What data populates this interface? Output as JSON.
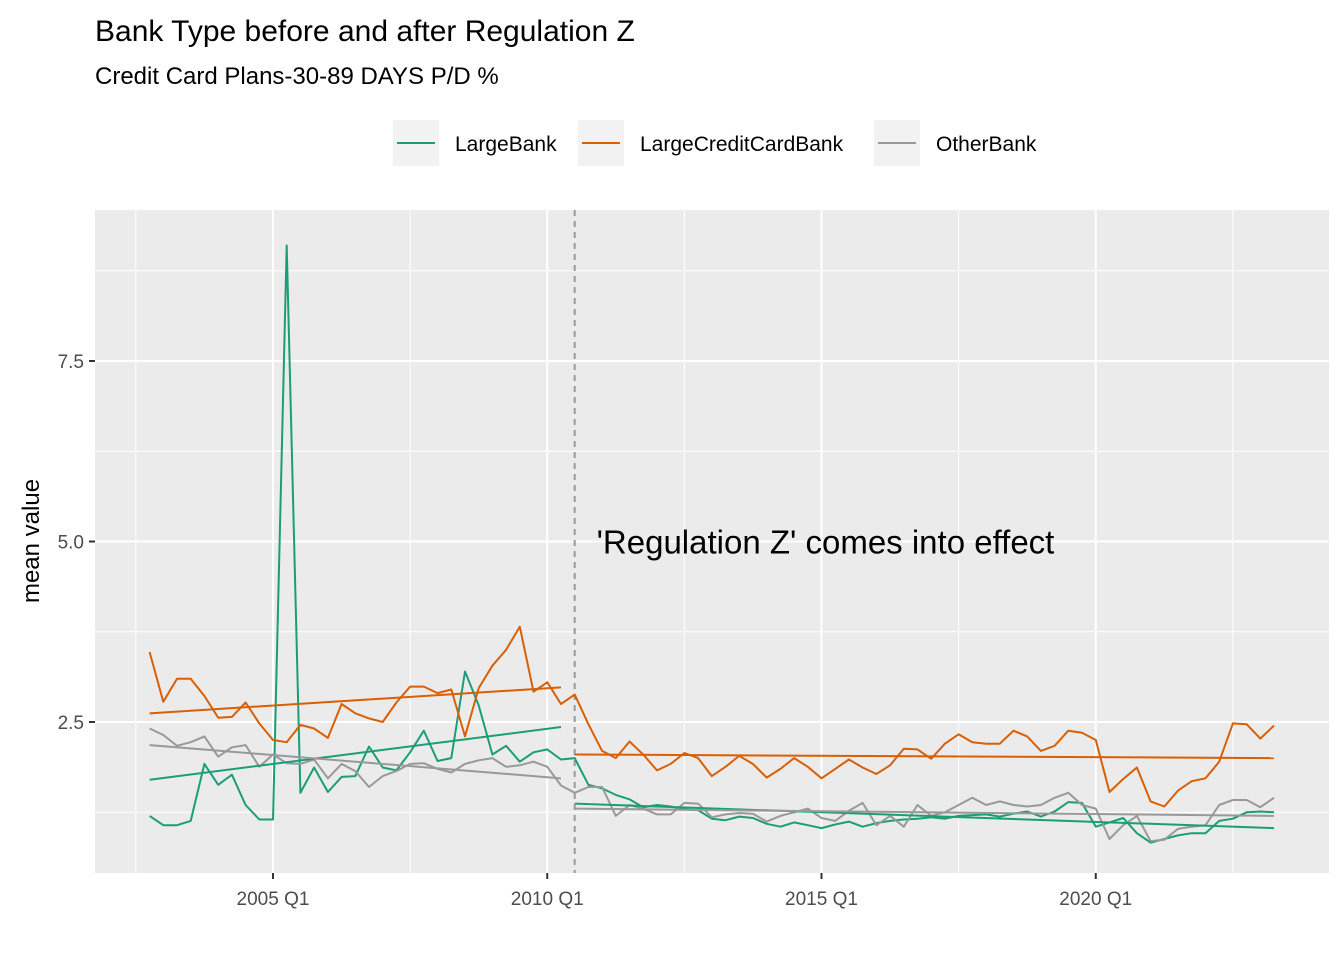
{
  "chart_data": {
    "type": "line",
    "title": "Bank Type before and after Regulation Z",
    "subtitle": "Credit Card Plans-30-89 DAYS P/D %",
    "xlabel": "",
    "ylabel": "mean value",
    "x_ticks": [
      "2005 Q1",
      "2010 Q1",
      "2015 Q1",
      "2020 Q1"
    ],
    "y_ticks": [
      2.5,
      5.0,
      7.5
    ],
    "y_tick_labels": [
      "2.5",
      "5.0",
      "7.5"
    ],
    "xlim": [
      2002.0,
      2024.5
    ],
    "ylim": [
      0.0,
      9.3
    ],
    "grid": true,
    "legend_position": "top",
    "vline": {
      "x": 2010.5,
      "style": "dashed",
      "color": "#999999"
    },
    "annotation": {
      "text": "'Regulation Z' comes into effect",
      "x": 2010.9,
      "y": 5.0
    },
    "series": [
      {
        "name": "LargeBank",
        "color": "#1b9e77",
        "x": [
          2002.75,
          2003.0,
          2003.25,
          2003.5,
          2003.75,
          2004.0,
          2004.25,
          2004.5,
          2004.75,
          2005.0,
          2005.25,
          2005.5,
          2005.75,
          2006.0,
          2006.25,
          2006.5,
          2006.75,
          2007.0,
          2007.25,
          2007.5,
          2007.75,
          2008.0,
          2008.25,
          2008.5,
          2008.75,
          2009.0,
          2009.25,
          2009.5,
          2009.75,
          2010.0,
          2010.25,
          2010.5,
          2010.75,
          2011.0,
          2011.25,
          2011.5,
          2011.75,
          2012.0,
          2012.25,
          2012.5,
          2012.75,
          2013.0,
          2013.25,
          2013.5,
          2013.75,
          2014.0,
          2014.25,
          2014.5,
          2014.75,
          2015.0,
          2015.25,
          2015.5,
          2015.75,
          2016.0,
          2016.25,
          2016.5,
          2016.75,
          2017.0,
          2017.25,
          2017.5,
          2017.75,
          2018.0,
          2018.25,
          2018.5,
          2018.75,
          2019.0,
          2019.25,
          2019.5,
          2019.75,
          2020.0,
          2020.25,
          2020.5,
          2020.75,
          2021.0,
          2021.25,
          2021.5,
          2021.75,
          2022.0,
          2022.25,
          2022.5,
          2022.75,
          2023.0,
          2023.25
        ],
        "values": [
          1.2,
          1.07,
          1.07,
          1.13,
          1.92,
          1.63,
          1.77,
          1.35,
          1.15,
          1.15,
          9.1,
          1.52,
          1.87,
          1.53,
          1.74,
          1.75,
          2.16,
          1.87,
          1.83,
          2.08,
          2.38,
          1.96,
          2.0,
          3.2,
          2.73,
          2.05,
          2.17,
          1.95,
          2.08,
          2.12,
          1.98,
          2.0,
          1.63,
          1.58,
          1.49,
          1.43,
          1.32,
          1.35,
          1.33,
          1.29,
          1.28,
          1.16,
          1.14,
          1.19,
          1.17,
          1.09,
          1.05,
          1.11,
          1.07,
          1.03,
          1.08,
          1.12,
          1.05,
          1.1,
          1.13,
          1.15,
          1.16,
          1.18,
          1.16,
          1.2,
          1.21,
          1.22,
          1.19,
          1.23,
          1.26,
          1.19,
          1.26,
          1.39,
          1.38,
          1.05,
          1.11,
          1.17,
          0.96,
          0.83,
          0.88,
          0.93,
          0.96,
          0.96,
          1.13,
          1.16,
          1.25,
          1.26,
          1.25
        ]
      },
      {
        "name": "LargeCreditCardBank",
        "color": "#d95f02",
        "x": [
          2002.75,
          2003.0,
          2003.25,
          2003.5,
          2003.75,
          2004.0,
          2004.25,
          2004.5,
          2004.75,
          2005.0,
          2005.25,
          2005.5,
          2005.75,
          2006.0,
          2006.25,
          2006.5,
          2006.75,
          2007.0,
          2007.25,
          2007.5,
          2007.75,
          2008.0,
          2008.25,
          2008.5,
          2008.75,
          2009.0,
          2009.25,
          2009.5,
          2009.75,
          2010.0,
          2010.25,
          2010.5,
          2010.75,
          2011.0,
          2011.25,
          2011.5,
          2011.75,
          2012.0,
          2012.25,
          2012.5,
          2012.75,
          2013.0,
          2013.25,
          2013.5,
          2013.75,
          2014.0,
          2014.25,
          2014.5,
          2014.75,
          2015.0,
          2015.25,
          2015.5,
          2015.75,
          2016.0,
          2016.25,
          2016.5,
          2016.75,
          2017.0,
          2017.25,
          2017.5,
          2017.75,
          2018.0,
          2018.25,
          2018.5,
          2018.75,
          2019.0,
          2019.25,
          2019.5,
          2019.75,
          2020.0,
          2020.25,
          2020.5,
          2020.75,
          2021.0,
          2021.25,
          2021.5,
          2021.75,
          2022.0,
          2022.25,
          2022.5,
          2022.75,
          2023.0,
          2023.25
        ],
        "values": [
          3.47,
          2.78,
          3.1,
          3.1,
          2.86,
          2.56,
          2.57,
          2.77,
          2.48,
          2.25,
          2.22,
          2.46,
          2.41,
          2.28,
          2.75,
          2.62,
          2.55,
          2.5,
          2.77,
          2.99,
          2.99,
          2.9,
          2.95,
          2.3,
          2.97,
          3.28,
          3.5,
          3.82,
          2.92,
          3.05,
          2.75,
          2.88,
          2.47,
          2.1,
          2.0,
          2.23,
          2.05,
          1.83,
          1.92,
          2.07,
          2.0,
          1.75,
          1.88,
          2.03,
          1.92,
          1.73,
          1.85,
          2.0,
          1.88,
          1.72,
          1.85,
          1.98,
          1.87,
          1.78,
          1.9,
          2.13,
          2.12,
          1.99,
          2.2,
          2.33,
          2.22,
          2.2,
          2.2,
          2.38,
          2.3,
          2.1,
          2.17,
          2.38,
          2.35,
          2.25,
          1.53,
          1.71,
          1.87,
          1.4,
          1.33,
          1.55,
          1.68,
          1.72,
          1.95,
          2.48,
          2.47,
          2.27,
          2.45
        ]
      },
      {
        "name": "OtherBank",
        "color": "#999999",
        "x": [
          2002.75,
          2003.0,
          2003.25,
          2003.5,
          2003.75,
          2004.0,
          2004.25,
          2004.5,
          2004.75,
          2005.0,
          2005.25,
          2005.5,
          2005.75,
          2006.0,
          2006.25,
          2006.5,
          2006.75,
          2007.0,
          2007.25,
          2007.5,
          2007.75,
          2008.0,
          2008.25,
          2008.5,
          2008.75,
          2009.0,
          2009.25,
          2009.5,
          2009.75,
          2010.0,
          2010.25,
          2010.5,
          2010.75,
          2011.0,
          2011.25,
          2011.5,
          2011.75,
          2012.0,
          2012.25,
          2012.5,
          2012.75,
          2013.0,
          2013.25,
          2013.5,
          2013.75,
          2014.0,
          2014.25,
          2014.5,
          2014.75,
          2015.0,
          2015.25,
          2015.5,
          2015.75,
          2016.0,
          2016.25,
          2016.5,
          2016.75,
          2017.0,
          2017.25,
          2017.5,
          2017.75,
          2018.0,
          2018.25,
          2018.5,
          2018.75,
          2019.0,
          2019.25,
          2019.5,
          2019.75,
          2020.0,
          2020.25,
          2020.5,
          2020.75,
          2021.0,
          2021.25,
          2021.5,
          2021.75,
          2022.0,
          2022.25,
          2022.5,
          2022.75,
          2023.0,
          2023.25
        ],
        "values": [
          2.41,
          2.32,
          2.17,
          2.22,
          2.3,
          2.02,
          2.15,
          2.18,
          1.88,
          2.05,
          1.93,
          1.92,
          1.98,
          1.72,
          1.92,
          1.82,
          1.6,
          1.75,
          1.82,
          1.92,
          1.93,
          1.85,
          1.8,
          1.92,
          1.97,
          2.0,
          1.88,
          1.9,
          1.95,
          1.88,
          1.62,
          1.52,
          1.6,
          1.6,
          1.2,
          1.35,
          1.3,
          1.22,
          1.22,
          1.38,
          1.37,
          1.18,
          1.22,
          1.24,
          1.23,
          1.12,
          1.2,
          1.25,
          1.3,
          1.17,
          1.13,
          1.27,
          1.38,
          1.07,
          1.2,
          1.05,
          1.35,
          1.2,
          1.25,
          1.35,
          1.45,
          1.35,
          1.4,
          1.35,
          1.33,
          1.35,
          1.45,
          1.52,
          1.35,
          1.3,
          0.88,
          1.07,
          1.2,
          0.85,
          0.87,
          1.02,
          1.05,
          1.07,
          1.35,
          1.42,
          1.42,
          1.32,
          1.45
        ]
      }
    ],
    "trend_lines": [
      {
        "series": "LargeBank",
        "x": [
          2002.75,
          2010.25
        ],
        "values": [
          1.7,
          2.43
        ]
      },
      {
        "series": "LargeCreditCardBank",
        "x": [
          2002.75,
          2010.25
        ],
        "values": [
          2.62,
          2.98
        ]
      },
      {
        "series": "OtherBank",
        "x": [
          2002.75,
          2010.25
        ],
        "values": [
          2.18,
          1.72
        ]
      },
      {
        "series": "LargeBank",
        "x": [
          2010.5,
          2023.25
        ],
        "values": [
          1.37,
          1.03
        ]
      },
      {
        "series": "LargeCreditCardBank",
        "x": [
          2010.5,
          2023.25
        ],
        "values": [
          2.05,
          2.0
        ]
      },
      {
        "series": "OtherBank",
        "x": [
          2010.5,
          2023.25
        ],
        "values": [
          1.3,
          1.2
        ]
      }
    ]
  }
}
